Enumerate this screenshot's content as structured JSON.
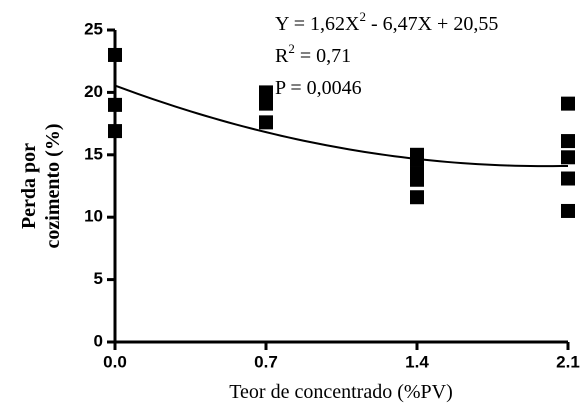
{
  "chart_data": {
    "type": "scatter",
    "xlabel": "Teor de concentrado (%PV)",
    "ylabel": [
      "Perda por",
      "cozimento (%)"
    ],
    "series": [
      {
        "color": "#000000",
        "x": [
          0,
          0,
          0,
          0.7,
          0.7,
          0.7,
          0.7,
          1.4,
          1.4,
          1.4,
          1.4,
          1.4,
          2.1,
          2.1,
          2.1,
          2.1,
          2.1
        ],
        "values": [
          23,
          19,
          16.9,
          20,
          19.4,
          19.1,
          17.6,
          15,
          14.6,
          13.5,
          13,
          11.6,
          19.1,
          16.1,
          14.8,
          13.1,
          10.5
        ]
      }
    ],
    "fit": {
      "lhs": "Y  =",
      "terms": [
        {
          "value": 1.62,
          "label": "1,62X",
          "exp": "2"
        },
        {
          "value": -6.47,
          "label": " - 6,47X"
        },
        {
          "value": 20.55,
          "label": " + 20,55"
        }
      ]
    },
    "r2": {
      "base": "R",
      "exp": "2",
      "rest": " = 0,71"
    },
    "p": "P = 0,0046",
    "xlim": [
      0,
      2.1
    ],
    "xticks": [
      {
        "value": 0,
        "label": "0.0"
      },
      0.7,
      1.4,
      2.1
    ],
    "ylim": [
      0,
      25
    ],
    "yticks": [
      0,
      5,
      10,
      15,
      20,
      25
    ]
  }
}
